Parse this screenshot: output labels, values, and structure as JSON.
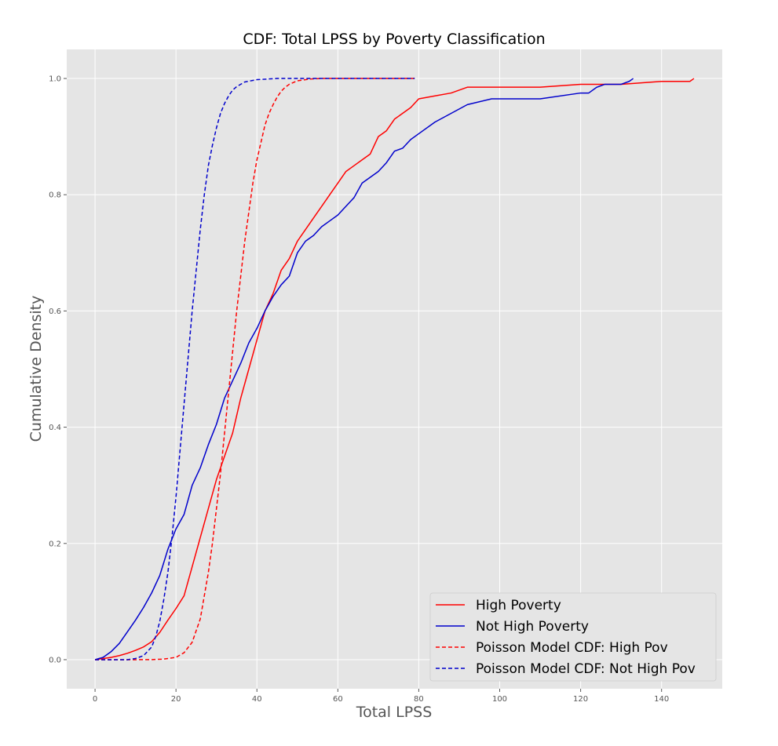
{
  "chart_data": {
    "type": "line",
    "title": "CDF: Total LPSS by Poverty Classification",
    "xlabel": "Total LPSS",
    "ylabel": "Cumulative Density",
    "xlim": [
      -7,
      155
    ],
    "ylim": [
      -0.05,
      1.05
    ],
    "xticks": [
      0,
      20,
      40,
      60,
      80,
      100,
      120,
      140
    ],
    "yticks": [
      0.0,
      0.2,
      0.4,
      0.6,
      0.8,
      1.0
    ],
    "xtick_labels": [
      "0",
      "20",
      "40",
      "60",
      "80",
      "100",
      "120",
      "140"
    ],
    "ytick_labels": [
      "0.0",
      "0.2",
      "0.4",
      "0.6",
      "0.8",
      "1.0"
    ],
    "grid": true,
    "legend_position": "bottom-right",
    "background": "#e5e5e5",
    "grid_color": "#ffffff",
    "series": [
      {
        "name": "High Poverty",
        "color": "#ff0000",
        "style": "solid",
        "x": [
          0,
          2,
          4,
          6,
          8,
          10,
          12,
          14,
          16,
          18,
          20,
          22,
          24,
          26,
          28,
          30,
          32,
          34,
          36,
          38,
          40,
          42,
          44,
          46,
          48,
          50,
          52,
          54,
          56,
          58,
          60,
          62,
          64,
          66,
          68,
          70,
          72,
          74,
          76,
          78,
          80,
          84,
          88,
          92,
          100,
          110,
          120,
          125,
          130,
          140,
          147,
          148
        ],
        "y": [
          0.0,
          0.002,
          0.004,
          0.007,
          0.011,
          0.016,
          0.022,
          0.031,
          0.047,
          0.068,
          0.088,
          0.11,
          0.16,
          0.21,
          0.26,
          0.31,
          0.35,
          0.39,
          0.45,
          0.5,
          0.55,
          0.6,
          0.63,
          0.67,
          0.69,
          0.72,
          0.74,
          0.76,
          0.78,
          0.8,
          0.82,
          0.84,
          0.85,
          0.86,
          0.87,
          0.9,
          0.91,
          0.93,
          0.94,
          0.95,
          0.965,
          0.97,
          0.975,
          0.985,
          0.985,
          0.985,
          0.99,
          0.99,
          0.99,
          0.995,
          0.995,
          1.0
        ]
      },
      {
        "name": "Not High Poverty",
        "color": "#0000cc",
        "style": "solid",
        "x": [
          0,
          2,
          4,
          6,
          8,
          10,
          12,
          14,
          16,
          18,
          20,
          22,
          24,
          26,
          28,
          30,
          32,
          34,
          36,
          38,
          40,
          42,
          44,
          46,
          48,
          50,
          52,
          54,
          56,
          58,
          60,
          62,
          64,
          66,
          68,
          70,
          72,
          74,
          76,
          78,
          80,
          84,
          88,
          92,
          98,
          110,
          120,
          122,
          124,
          126,
          130,
          132,
          133
        ],
        "y": [
          0.0,
          0.004,
          0.014,
          0.028,
          0.048,
          0.068,
          0.09,
          0.115,
          0.145,
          0.19,
          0.225,
          0.25,
          0.3,
          0.33,
          0.37,
          0.405,
          0.45,
          0.48,
          0.51,
          0.545,
          0.57,
          0.6,
          0.625,
          0.645,
          0.66,
          0.7,
          0.72,
          0.73,
          0.745,
          0.755,
          0.765,
          0.78,
          0.795,
          0.82,
          0.83,
          0.84,
          0.855,
          0.875,
          0.88,
          0.895,
          0.905,
          0.925,
          0.94,
          0.955,
          0.965,
          0.965,
          0.975,
          0.975,
          0.985,
          0.99,
          0.99,
          0.995,
          1.0
        ]
      },
      {
        "name": "Poisson Model CDF: High Pov",
        "color": "#ff0000",
        "style": "dashed",
        "x": [
          0,
          10,
          14,
          17,
          20,
          22,
          24,
          26,
          28,
          29,
          30,
          31,
          32,
          33,
          34,
          35,
          36,
          37,
          38,
          39,
          40,
          41,
          42,
          43,
          44,
          45,
          46,
          47,
          48,
          50,
          53,
          56,
          60,
          70,
          79
        ],
        "y": [
          0.0,
          0.0,
          0.0001,
          0.001,
          0.004,
          0.012,
          0.03,
          0.07,
          0.15,
          0.2,
          0.26,
          0.32,
          0.39,
          0.46,
          0.53,
          0.6,
          0.66,
          0.72,
          0.77,
          0.82,
          0.86,
          0.89,
          0.92,
          0.94,
          0.955,
          0.968,
          0.978,
          0.985,
          0.99,
          0.996,
          0.999,
          1.0,
          1.0,
          1.0,
          1.0
        ]
      },
      {
        "name": "Poisson Model CDF: Not High Pov",
        "color": "#0000cc",
        "style": "dashed",
        "x": [
          0,
          8,
          10,
          12,
          14,
          15,
          16,
          17,
          18,
          19,
          20,
          21,
          22,
          23,
          24,
          25,
          26,
          27,
          28,
          29,
          30,
          31,
          32,
          33,
          34,
          35,
          37,
          40,
          45,
          55,
          79
        ],
        "y": [
          0.0,
          0.0,
          0.002,
          0.007,
          0.022,
          0.04,
          0.066,
          0.104,
          0.15,
          0.21,
          0.28,
          0.36,
          0.44,
          0.52,
          0.6,
          0.67,
          0.74,
          0.8,
          0.85,
          0.885,
          0.915,
          0.94,
          0.957,
          0.97,
          0.98,
          0.986,
          0.994,
          0.998,
          1.0,
          1.0,
          1.0
        ]
      }
    ]
  }
}
